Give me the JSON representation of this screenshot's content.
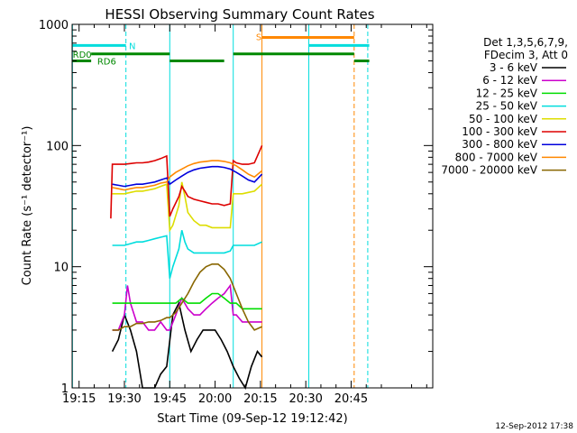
{
  "chart_data": {
    "type": "line",
    "title": "HESSI Observing Summary Count Rates",
    "xlabel": "Start Time (09-Sep-12 19:12:42)",
    "ylabel": "Count Rate (s⁻¹ detector⁻¹)",
    "yscale": "log",
    "ylim": [
      1,
      1000
    ],
    "xlim_minutes_of_day": [
      1152.7,
      1272
    ],
    "x_ticks": [
      {
        "label": "19:15",
        "minute": 1155
      },
      {
        "label": "19:30",
        "minute": 1170
      },
      {
        "label": "19:45",
        "minute": 1185
      },
      {
        "label": "20:00",
        "minute": 1200
      },
      {
        "label": "20:15",
        "minute": 1215
      },
      {
        "label": "20:30",
        "minute": 1230
      },
      {
        "label": "20:45",
        "minute": 1245
      }
    ],
    "y_ticks": [
      {
        "label": "1",
        "value": 1
      },
      {
        "label": "10",
        "value": 10
      },
      {
        "label": "100",
        "value": 100
      },
      {
        "label": "1000",
        "value": 1000
      }
    ],
    "grid": false,
    "legend": {
      "placement": "right",
      "header": [
        "Det 1,3,5,6,7,9,",
        "FDecim 3, Att 0"
      ]
    },
    "series": [
      {
        "name": "3 - 6 keV",
        "color": "#000000",
        "points": [
          [
            1166,
            2
          ],
          [
            1168,
            2.5
          ],
          [
            1170,
            4
          ],
          [
            1172,
            3
          ],
          [
            1174,
            2
          ],
          [
            1176,
            1
          ],
          [
            1178,
            1
          ],
          [
            1180,
            1
          ],
          [
            1182,
            1.3
          ],
          [
            1184,
            1.5
          ],
          [
            1186,
            4
          ],
          [
            1188,
            5
          ],
          [
            1190,
            3
          ],
          [
            1192,
            2
          ],
          [
            1194,
            2.5
          ],
          [
            1196,
            3
          ],
          [
            1198,
            3
          ],
          [
            1200,
            3
          ],
          [
            1202,
            2.5
          ],
          [
            1204,
            2
          ],
          [
            1206,
            1.5
          ],
          [
            1208,
            1.2
          ],
          [
            1210,
            1
          ],
          [
            1212,
            1.5
          ],
          [
            1214,
            2
          ],
          [
            1215.5,
            1.8
          ]
        ]
      },
      {
        "name": "6 - 12 keV",
        "color": "#cc00cc",
        "points": [
          [
            1166,
            3
          ],
          [
            1168,
            3
          ],
          [
            1170,
            4
          ],
          [
            1171,
            7
          ],
          [
            1172,
            5
          ],
          [
            1174,
            3.5
          ],
          [
            1176,
            3.5
          ],
          [
            1178,
            3
          ],
          [
            1180,
            3
          ],
          [
            1182,
            3.5
          ],
          [
            1184,
            3
          ],
          [
            1185,
            3
          ],
          [
            1187,
            4
          ],
          [
            1189,
            5.5
          ],
          [
            1191,
            4.5
          ],
          [
            1193,
            4
          ],
          [
            1195,
            4
          ],
          [
            1197,
            4.5
          ],
          [
            1199,
            5
          ],
          [
            1201,
            5.5
          ],
          [
            1203,
            6
          ],
          [
            1205,
            7
          ],
          [
            1206,
            4
          ],
          [
            1207,
            4
          ],
          [
            1209,
            3.5
          ],
          [
            1211,
            3.5
          ],
          [
            1213,
            3.5
          ],
          [
            1215.5,
            3.5
          ]
        ]
      },
      {
        "name": "12 - 25 keV",
        "color": "#00dd00",
        "points": [
          [
            1166,
            5
          ],
          [
            1168,
            5
          ],
          [
            1170,
            5
          ],
          [
            1172,
            5
          ],
          [
            1174,
            5
          ],
          [
            1176,
            5
          ],
          [
            1178,
            5
          ],
          [
            1180,
            5
          ],
          [
            1182,
            5
          ],
          [
            1184,
            5
          ],
          [
            1185,
            5
          ],
          [
            1187,
            5
          ],
          [
            1189,
            5.5
          ],
          [
            1191,
            5
          ],
          [
            1193,
            5
          ],
          [
            1195,
            5
          ],
          [
            1197,
            5.5
          ],
          [
            1199,
            6
          ],
          [
            1201,
            6
          ],
          [
            1203,
            5.5
          ],
          [
            1205,
            5
          ],
          [
            1207,
            5
          ],
          [
            1209,
            4.5
          ],
          [
            1211,
            4.5
          ],
          [
            1213,
            4.5
          ],
          [
            1215.5,
            4.5
          ]
        ]
      },
      {
        "name": "25 - 50 keV",
        "color": "#00dddd",
        "points": [
          [
            1166,
            15
          ],
          [
            1168,
            15
          ],
          [
            1170,
            15
          ],
          [
            1172,
            15.5
          ],
          [
            1174,
            16
          ],
          [
            1176,
            16
          ],
          [
            1178,
            16.5
          ],
          [
            1180,
            17
          ],
          [
            1182,
            17.5
          ],
          [
            1184,
            18
          ],
          [
            1185,
            8
          ],
          [
            1186,
            10
          ],
          [
            1188,
            14
          ],
          [
            1189,
            20
          ],
          [
            1190,
            16
          ],
          [
            1191,
            14
          ],
          [
            1193,
            13
          ],
          [
            1195,
            13
          ],
          [
            1197,
            13
          ],
          [
            1199,
            13
          ],
          [
            1201,
            13
          ],
          [
            1203,
            13
          ],
          [
            1205,
            13.5
          ],
          [
            1206,
            15
          ],
          [
            1207,
            15
          ],
          [
            1209,
            15
          ],
          [
            1211,
            15
          ],
          [
            1213,
            15
          ],
          [
            1215.5,
            16
          ]
        ]
      },
      {
        "name": "50 - 100 keV",
        "color": "#dddd00",
        "points": [
          [
            1166,
            40
          ],
          [
            1168,
            40
          ],
          [
            1170,
            40
          ],
          [
            1172,
            41
          ],
          [
            1174,
            42
          ],
          [
            1176,
            42
          ],
          [
            1178,
            43
          ],
          [
            1180,
            44
          ],
          [
            1182,
            46
          ],
          [
            1184,
            48
          ],
          [
            1185,
            20
          ],
          [
            1186,
            22
          ],
          [
            1188,
            32
          ],
          [
            1189,
            50
          ],
          [
            1190,
            38
          ],
          [
            1191,
            28
          ],
          [
            1193,
            24
          ],
          [
            1195,
            22
          ],
          [
            1197,
            22
          ],
          [
            1199,
            21
          ],
          [
            1201,
            21
          ],
          [
            1203,
            21
          ],
          [
            1205,
            21
          ],
          [
            1206,
            40
          ],
          [
            1207,
            40
          ],
          [
            1209,
            40
          ],
          [
            1211,
            41
          ],
          [
            1213,
            42
          ],
          [
            1215.5,
            48
          ]
        ]
      },
      {
        "name": "100 - 300 keV",
        "color": "#dd0000",
        "points": [
          [
            1165.5,
            25
          ],
          [
            1166,
            70
          ],
          [
            1168,
            70
          ],
          [
            1170,
            70
          ],
          [
            1172,
            71
          ],
          [
            1174,
            72
          ],
          [
            1176,
            72
          ],
          [
            1178,
            73
          ],
          [
            1180,
            75
          ],
          [
            1182,
            78
          ],
          [
            1184,
            82
          ],
          [
            1185,
            26
          ],
          [
            1186,
            30
          ],
          [
            1188,
            38
          ],
          [
            1189,
            46
          ],
          [
            1190,
            42
          ],
          [
            1191,
            38
          ],
          [
            1193,
            36
          ],
          [
            1195,
            35
          ],
          [
            1197,
            34
          ],
          [
            1199,
            33
          ],
          [
            1201,
            33
          ],
          [
            1203,
            32
          ],
          [
            1205,
            33
          ],
          [
            1206,
            75
          ],
          [
            1207,
            72
          ],
          [
            1209,
            70
          ],
          [
            1211,
            70
          ],
          [
            1213,
            72
          ],
          [
            1215.5,
            100
          ]
        ]
      },
      {
        "name": "300 - 800 keV",
        "color": "#0000dd",
        "points": [
          [
            1166,
            48
          ],
          [
            1168,
            47
          ],
          [
            1170,
            46
          ],
          [
            1172,
            47
          ],
          [
            1174,
            48
          ],
          [
            1176,
            48
          ],
          [
            1178,
            49
          ],
          [
            1180,
            50
          ],
          [
            1182,
            52
          ],
          [
            1184,
            54
          ],
          [
            1185,
            48
          ],
          [
            1187,
            52
          ],
          [
            1189,
            56
          ],
          [
            1191,
            60
          ],
          [
            1193,
            63
          ],
          [
            1195,
            65
          ],
          [
            1197,
            66
          ],
          [
            1199,
            67
          ],
          [
            1201,
            67
          ],
          [
            1203,
            66
          ],
          [
            1205,
            64
          ],
          [
            1207,
            60
          ],
          [
            1209,
            56
          ],
          [
            1211,
            52
          ],
          [
            1213,
            50
          ],
          [
            1215.5,
            58
          ]
        ]
      },
      {
        "name": "800 - 7000 keV",
        "color": "#ff8800",
        "points": [
          [
            1166,
            45
          ],
          [
            1168,
            44
          ],
          [
            1170,
            43
          ],
          [
            1172,
            44
          ],
          [
            1174,
            45
          ],
          [
            1176,
            45
          ],
          [
            1178,
            46
          ],
          [
            1180,
            47
          ],
          [
            1182,
            49
          ],
          [
            1184,
            50
          ],
          [
            1185,
            55
          ],
          [
            1187,
            60
          ],
          [
            1189,
            64
          ],
          [
            1191,
            68
          ],
          [
            1193,
            71
          ],
          [
            1195,
            73
          ],
          [
            1197,
            74
          ],
          [
            1199,
            75
          ],
          [
            1201,
            75
          ],
          [
            1203,
            74
          ],
          [
            1205,
            72
          ],
          [
            1207,
            68
          ],
          [
            1209,
            63
          ],
          [
            1211,
            58
          ],
          [
            1213,
            55
          ],
          [
            1215.5,
            62
          ]
        ]
      },
      {
        "name": "7000 - 20000 keV",
        "color": "#886600",
        "points": [
          [
            1166,
            3
          ],
          [
            1168,
            3
          ],
          [
            1170,
            3.2
          ],
          [
            1172,
            3.2
          ],
          [
            1174,
            3.4
          ],
          [
            1176,
            3.4
          ],
          [
            1178,
            3.5
          ],
          [
            1180,
            3.5
          ],
          [
            1182,
            3.6
          ],
          [
            1184,
            3.8
          ],
          [
            1185,
            3.8
          ],
          [
            1187,
            4.2
          ],
          [
            1189,
            5
          ],
          [
            1191,
            6
          ],
          [
            1193,
            7.5
          ],
          [
            1195,
            9
          ],
          [
            1197,
            10
          ],
          [
            1199,
            10.5
          ],
          [
            1201,
            10.5
          ],
          [
            1203,
            9.5
          ],
          [
            1205,
            8
          ],
          [
            1207,
            6
          ],
          [
            1209,
            4.5
          ],
          [
            1211,
            3.5
          ],
          [
            1213,
            3
          ],
          [
            1215.5,
            3.2
          ]
        ]
      }
    ],
    "markers": {
      "vertical_lines": [
        {
          "minute": 1152.8,
          "color": "#00dddd",
          "style": "solid"
        },
        {
          "minute": 1170.5,
          "color": "#00dddd",
          "style": "dashed"
        },
        {
          "minute": 1185,
          "color": "#00dddd",
          "style": "solid"
        },
        {
          "minute": 1206,
          "color": "#00dddd",
          "style": "solid"
        },
        {
          "minute": 1215.5,
          "color": "#ff8800",
          "style": "solid"
        },
        {
          "minute": 1231,
          "color": "#00dddd",
          "style": "solid"
        },
        {
          "minute": 1246,
          "color": "#ff8800",
          "style": "dashed"
        },
        {
          "minute": 1250.5,
          "color": "#00dddd",
          "style": "dashed"
        }
      ],
      "status_bars": [
        {
          "label": "N",
          "color": "#00dddd",
          "value": 670,
          "segments": [
            [
              1152.8,
              1170.5
            ]
          ]
        },
        {
          "label": "S",
          "color": "#ff8800",
          "value": 780,
          "segments": [
            [
              1215.5,
              1246
            ]
          ]
        },
        {
          "label": "",
          "color": "#00dddd",
          "value": 670,
          "segments": [
            [
              1231,
              1251
            ]
          ]
        },
        {
          "label": "RD0",
          "color": "#008800",
          "value": 570,
          "segments": [
            [
              1159,
              1185
            ],
            [
              1206,
              1246
            ]
          ]
        },
        {
          "label": "RD6",
          "color": "#008800",
          "value": 500,
          "segments": [
            [
              1152.8,
              1159
            ],
            [
              1185,
              1203
            ],
            [
              1246,
              1251
            ]
          ]
        }
      ]
    }
  },
  "footer": {
    "timestamp": "12-Sep-2012 17:38"
  }
}
